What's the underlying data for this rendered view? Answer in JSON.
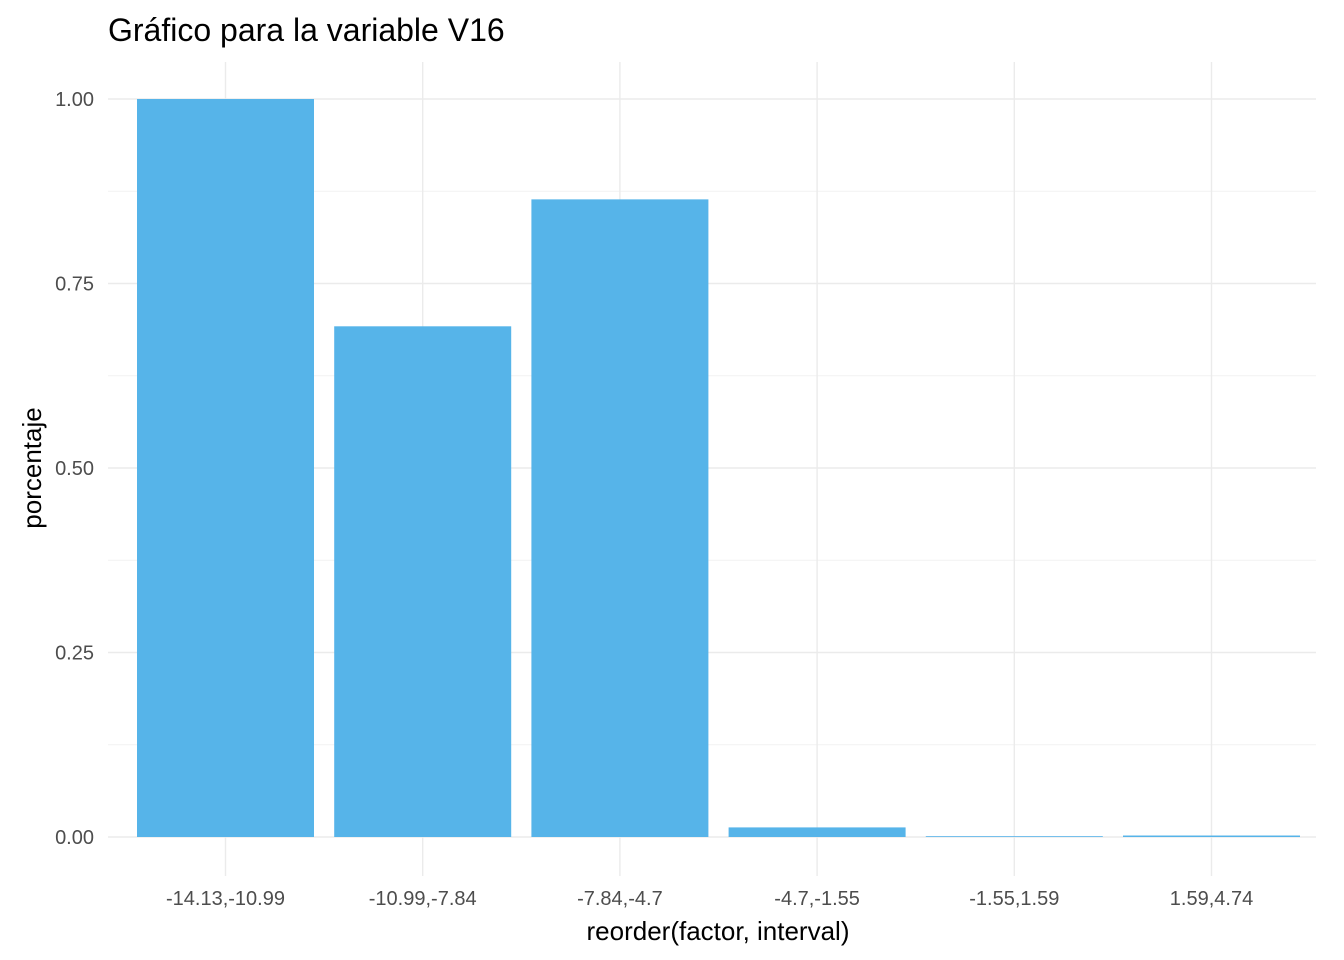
{
  "chart_data": {
    "type": "bar",
    "title": "Gráfico para la variable  V16",
    "xlabel": "reorder(factor, interval)",
    "ylabel": "porcentaje",
    "categories": [
      "-14.13,-10.99",
      "-10.99,-7.84",
      "-7.84,-4.7",
      "-4.7,-1.55",
      "-1.55,1.59",
      "1.59,4.74"
    ],
    "values": [
      1.0,
      0.692,
      0.864,
      0.013,
      0.001,
      0.002
    ],
    "ylim": [
      -0.04,
      1.05
    ],
    "yticks": [
      "0.00",
      "0.25",
      "0.50",
      "0.75",
      "1.00"
    ],
    "grid": true,
    "bar_color": "#56B4E9"
  }
}
